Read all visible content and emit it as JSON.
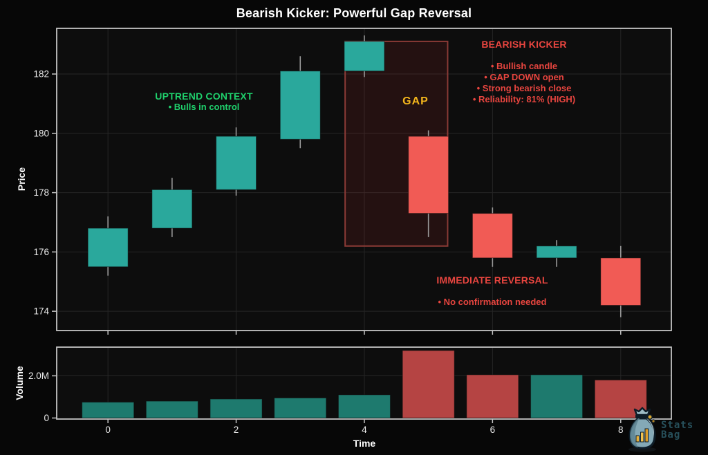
{
  "title": "Bearish Kicker: Powerful Gap Reversal",
  "chart_data": {
    "type": "candlestick",
    "title": "Bearish Kicker: Powerful Gap Reversal",
    "xlabel": "Time",
    "price_axis": {
      "label": "Price",
      "ticks": [
        174,
        176,
        178,
        180,
        182
      ],
      "range": [
        173.35,
        183.54
      ]
    },
    "time_axis": {
      "ticks": [
        0,
        2,
        4,
        6,
        8
      ],
      "range": [
        -0.8,
        8.79
      ]
    },
    "volume_axis": {
      "label": "Volume",
      "ticks": [
        {
          "value": 0,
          "label": "0"
        },
        {
          "value": 2000000,
          "label": "2.0M"
        }
      ],
      "range": [
        0,
        3360000
      ]
    },
    "candles": [
      {
        "t": 0,
        "open": 175.5,
        "high": 177.2,
        "low": 175.2,
        "close": 176.8,
        "volume": 750000
      },
      {
        "t": 1,
        "open": 176.8,
        "high": 178.5,
        "low": 176.5,
        "close": 178.1,
        "volume": 800000
      },
      {
        "t": 2,
        "open": 178.1,
        "high": 180.2,
        "low": 177.9,
        "close": 179.9,
        "volume": 900000
      },
      {
        "t": 3,
        "open": 179.8,
        "high": 182.6,
        "low": 179.5,
        "close": 182.1,
        "volume": 950000
      },
      {
        "t": 4,
        "open": 182.1,
        "high": 183.3,
        "low": 181.9,
        "close": 183.1,
        "volume": 1100000
      },
      {
        "t": 5,
        "open": 179.9,
        "high": 180.1,
        "low": 176.5,
        "close": 177.3,
        "volume": 3200000
      },
      {
        "t": 6,
        "open": 177.3,
        "high": 177.5,
        "low": 175.5,
        "close": 175.8,
        "volume": 2050000
      },
      {
        "t": 7,
        "open": 175.8,
        "high": 176.4,
        "low": 175.5,
        "close": 176.2,
        "volume": 2050000
      },
      {
        "t": 8,
        "open": 175.8,
        "high": 176.2,
        "low": 173.8,
        "close": 174.2,
        "volume": 1800000
      }
    ],
    "gap_region": {
      "t_start": 3.7,
      "t_end": 5.3,
      "price_bottom": 176.2,
      "price_top": 183.1
    }
  },
  "annotations": {
    "gap_label": "GAP",
    "uptrend": {
      "lines": [
        "UPTREND CONTEXT",
        "• Bulls in control"
      ]
    },
    "bearish_kicker": {
      "lines": [
        "BEARISH KICKER",
        "",
        "• Bullish candle",
        "• GAP DOWN open",
        "• Strong bearish close",
        "• Reliability: 81% (HIGH)"
      ]
    },
    "immediate_reversal": {
      "lines": [
        "IMMEDIATE REVERSAL",
        "",
        "• No confirmation needed"
      ]
    }
  },
  "watermark": {
    "line1": "Stats",
    "line2": "Bag"
  },
  "colors": {
    "bull": "#2aa89c",
    "bear": "#f15b55",
    "bull_volume": "#1e7a6e",
    "bear_volume": "#b54443",
    "wick": "#9a9a9a",
    "grid": "#262626",
    "panel_border": "#c4c4c4",
    "panel_bg": "#0d0d0d",
    "tick_text": "#ebebeb",
    "green_text": "#1fd06c",
    "red_text": "#e8453f",
    "gap_text": "#f2b51c",
    "gap_fill": "rgba(160,45,45,0.16)",
    "gap_border": "#8a3a36"
  }
}
